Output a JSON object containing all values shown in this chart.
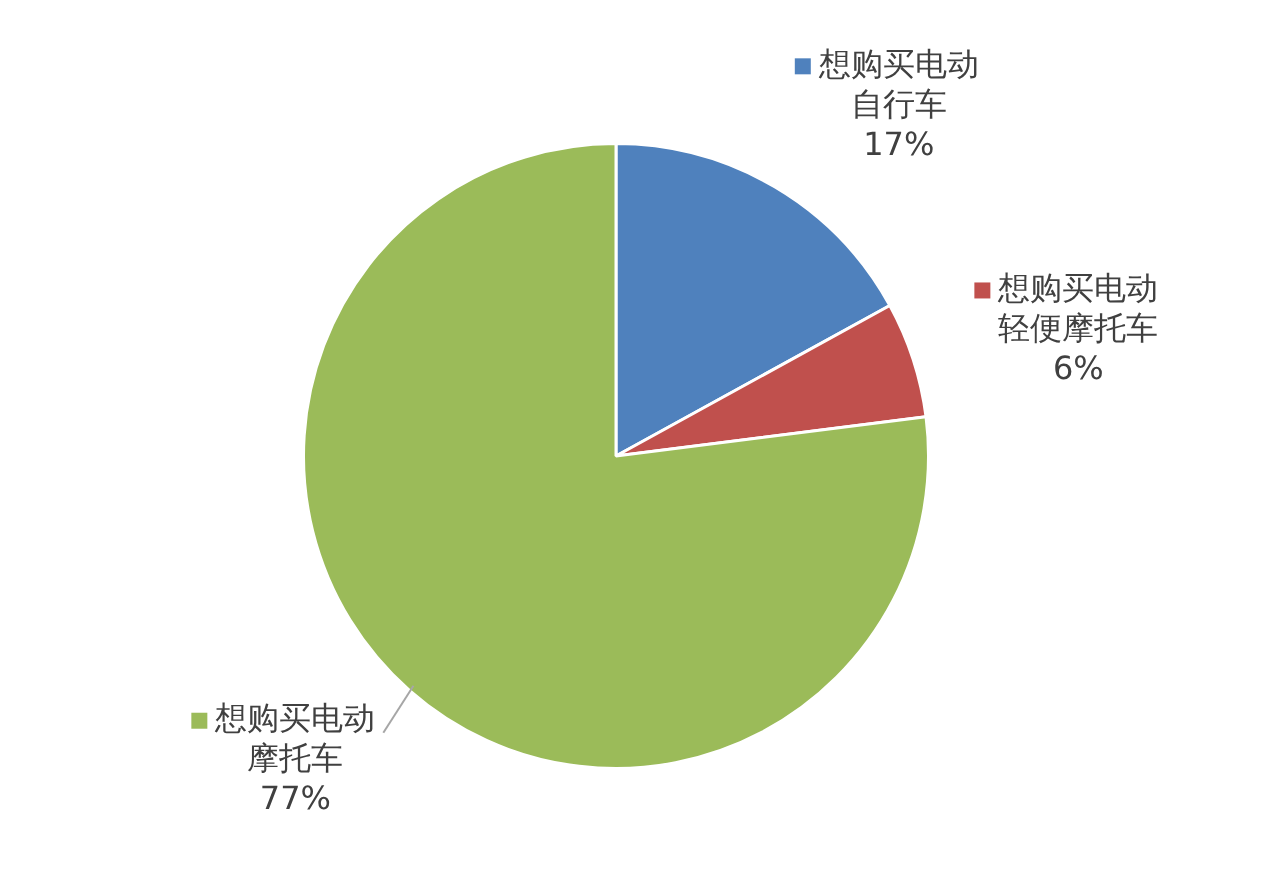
{
  "chart_data": {
    "type": "pie",
    "categories": [
      "想购买电动自行车",
      "想购买电动轻便摩托车",
      "想购买电动摩托车"
    ],
    "values": [
      17,
      6,
      77
    ],
    "colors": [
      "#4f81bd",
      "#c0504d",
      "#9bbb59"
    ],
    "value_labels": [
      "17%",
      "6%",
      "77%"
    ],
    "legend": "right"
  }
}
